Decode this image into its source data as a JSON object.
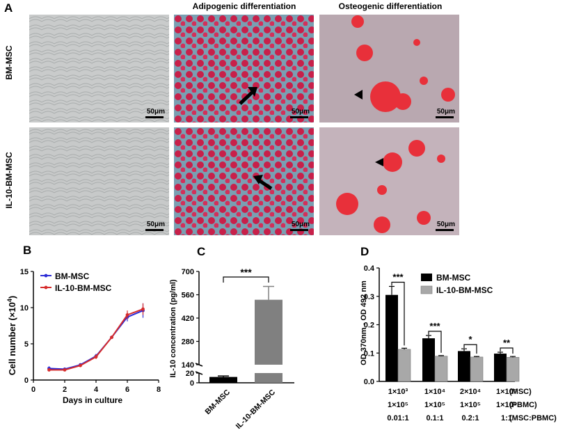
{
  "panel_a": {
    "letter": "A",
    "col_titles": [
      "Adipogenic differentiation",
      "Osteogenic differentiation"
    ],
    "row_labels": [
      "BM-MSC",
      "IL-10-BM-MSC"
    ],
    "scale_bar": "50μm"
  },
  "panel_b": {
    "letter": "B",
    "chart_data": {
      "type": "line",
      "xlabel": "Days in culture",
      "ylabel": "Cell number (×10",
      "ylabel_sup": "4",
      "ylabel_end": ")",
      "xlim": [
        0,
        8
      ],
      "ylim": [
        0,
        15
      ],
      "xticks": [
        "0",
        "2",
        "4",
        "6",
        "8"
      ],
      "yticks": [
        "0",
        "5",
        "10",
        "15"
      ],
      "legend": "top-left",
      "colors": {
        "BM-MSC": "#2b2bd6",
        "IL-10-BM-MSC": "#d62b2b"
      },
      "series": [
        {
          "name": "BM-MSC",
          "x": [
            1,
            2,
            3,
            4,
            5,
            6,
            7
          ],
          "y": [
            1.6,
            1.5,
            2.1,
            3.3,
            5.9,
            8.7,
            9.6
          ],
          "err": [
            0.3,
            0.2,
            0.2,
            0.3,
            0.2,
            0.6,
            1.0
          ]
        },
        {
          "name": "IL-10-BM-MSC",
          "x": [
            1,
            2,
            3,
            4,
            5,
            6,
            7
          ],
          "y": [
            1.4,
            1.4,
            2.0,
            3.2,
            5.9,
            9.0,
            9.8
          ],
          "err": [
            0.2,
            0.2,
            0.2,
            0.3,
            0.2,
            0.6,
            0.8
          ]
        }
      ]
    }
  },
  "panel_c": {
    "letter": "C",
    "chart_data": {
      "type": "bar",
      "categories": [
        "BM-MSC",
        "IL-10-BM-MSC"
      ],
      "values": [
        12,
        530
      ],
      "err": [
        2,
        80
      ],
      "ylabel": "IL-10 concentration (pg/ml)",
      "yticks": [
        "0",
        "20",
        "140",
        "280",
        "420",
        "560",
        "700"
      ],
      "axis_break": [
        20,
        140
      ],
      "significance": "***",
      "colors": {
        "BM-MSC": "#000000",
        "IL-10-BM-MSC": "#808080"
      }
    }
  },
  "panel_d": {
    "letter": "D",
    "chart_data": {
      "type": "bar",
      "categories": [
        "1×10³",
        "1×10⁴",
        "2×10⁴",
        "1×10⁵"
      ],
      "pbmc": [
        "1×10⁵",
        "1×10⁵",
        "1×10⁵",
        "1×10⁵"
      ],
      "ratios": [
        "0.01:1",
        "0.1:1",
        "0.2:1",
        "1:1"
      ],
      "row_labels": [
        "(MSC)",
        "(PBMC)",
        "(MSC:PBMC)"
      ],
      "ylabel": "OD 370nm - OD 492 nm",
      "ylim": [
        0,
        0.4
      ],
      "yticks": [
        "0.0",
        "0.1",
        "0.2",
        "0.3",
        "0.4"
      ],
      "legend": "top-right",
      "series": [
        {
          "name": "BM-MSC",
          "color": "#000000",
          "values": [
            0.305,
            0.152,
            0.107,
            0.098
          ],
          "err": [
            0.03,
            0.01,
            0.008,
            0.005
          ]
        },
        {
          "name": "IL-10-BM-MSC",
          "color": "#a8a8a8",
          "values": [
            0.113,
            0.089,
            0.086,
            0.085
          ],
          "err": [
            0.004,
            0.002,
            0.002,
            0.003
          ]
        }
      ],
      "significance": [
        "***",
        "***",
        "*",
        "**"
      ]
    }
  }
}
